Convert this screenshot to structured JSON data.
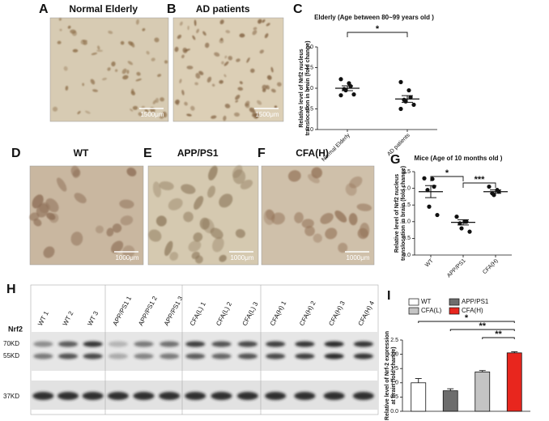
{
  "panels": [
    {
      "letter": "A",
      "label": "Normal Elderly",
      "scale": "1500μm"
    },
    {
      "letter": "B",
      "label": "AD patients",
      "scale": "1500μm"
    },
    {
      "letter": "D",
      "label": "WT",
      "scale": "1000μm"
    },
    {
      "letter": "E",
      "label": "APP/PS1",
      "scale": "1000μm"
    },
    {
      "letter": "F",
      "label": "CFA(H)",
      "scale": "1000μm"
    }
  ],
  "blot": {
    "letter": "H",
    "protein": "Nrf2",
    "markers": [
      "70KD",
      "55KD",
      "37KD"
    ],
    "lanes": [
      "WT 1",
      "WT 2",
      "WT 3",
      "APP/PS1 1",
      "APP/PS1 2",
      "APP/PS1 3",
      "CFA(L) 1",
      "CFA(L) 2",
      "CFA(L) 3",
      "CFA(H) 1",
      "CFA(H) 2",
      "CFA(H) 3",
      "CFA(H) 4"
    ]
  },
  "chart_data": [
    {
      "type": "dot",
      "panel_letter": "C",
      "title": "Elderly (Age between 80~99 years old )",
      "y_label": [
        "Relative level of Nrf2 nucleus",
        "translocation in brain (fold change)"
      ],
      "categories": [
        "Normal Elderly",
        "AD patients"
      ],
      "points": [
        [
          1.22,
          1.12,
          1.05,
          0.98,
          0.95,
          0.85,
          0.83
        ],
        [
          1.15,
          0.95,
          0.78,
          0.72,
          0.68,
          0.6,
          0.5
        ]
      ],
      "means": [
        1.0,
        0.74
      ],
      "sems": [
        0.06,
        0.08
      ],
      "color": "#111111",
      "ylim": [
        0,
        2
      ],
      "yticks": [
        {
          "value": 0,
          "label": "0.0"
        },
        0.5,
        {
          "value": 1,
          "label": "1.0"
        },
        1.5,
        {
          "value": 2,
          "label": "2.0"
        }
      ],
      "annotations": [
        "*"
      ]
    },
    {
      "type": "dot",
      "panel_letter": "G",
      "title": "Mice (Age of 10 months old )",
      "y_label": [
        "Relative level of Nrf2 nucleus",
        "translocation in brain (fold change)"
      ],
      "categories": [
        "WT",
        "APP/PS1",
        "CFA(H)"
      ],
      "points": [
        [
          2.3,
          2.28,
          2.05,
          1.95,
          1.45,
          1.2
        ],
        [
          1.15,
          1.0,
          1.0,
          0.95,
          0.8,
          0.7
        ],
        [
          2.05,
          1.95,
          1.9,
          1.85,
          1.8
        ]
      ],
      "means": [
        1.9,
        0.98,
        1.9
      ],
      "sems": [
        0.18,
        0.08,
        0.05
      ],
      "color": "#111111",
      "ylim": [
        0,
        2.5
      ],
      "yticks": [
        {
          "value": 0,
          "label": "0.0"
        },
        0.5,
        {
          "value": 1,
          "label": "1.0"
        },
        1.5,
        {
          "value": 2,
          "label": "2.0"
        },
        2.5
      ],
      "annotations": [
        "*",
        "***"
      ]
    },
    {
      "type": "bar",
      "panel_letter": "I",
      "y_label": [
        "Relative level of Nrf-2 expression",
        "at brain (fold change)"
      ],
      "series": [
        {
          "name": "WT",
          "color": "#ffffff",
          "values": [
            1.0
          ],
          "errors": [
            0.15
          ]
        },
        {
          "name": "APP/PS1",
          "color": "#6d6d6d",
          "values": [
            0.72
          ],
          "errors": [
            0.07
          ]
        },
        {
          "name": "CFA(L)",
          "color": "#c4c4c4",
          "values": [
            1.38
          ],
          "errors": [
            0.05
          ]
        },
        {
          "name": "CFA(H)",
          "color": "#e8261e",
          "values": [
            2.05
          ],
          "errors": [
            0.04
          ]
        }
      ],
      "ylim": [
        0,
        2.5
      ],
      "yticks": [
        {
          "value": 0,
          "label": "0.0"
        },
        0.5,
        {
          "value": 1,
          "label": "1.0"
        },
        1.5,
        {
          "value": 2,
          "label": "2.0"
        },
        2.5
      ],
      "annotations": [
        "*",
        "**",
        "**"
      ]
    }
  ]
}
